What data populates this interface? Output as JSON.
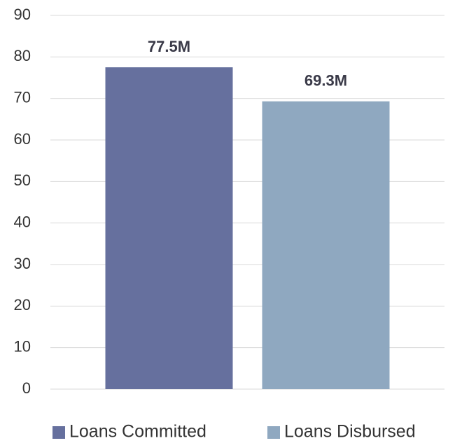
{
  "chart_data": {
    "type": "bar",
    "categories": [
      null
    ],
    "series": [
      {
        "name": "Loans Committed",
        "color": "#66709e",
        "values": [
          77.5
        ],
        "value_labels": [
          "77.5M"
        ]
      },
      {
        "name": "Loans Disbursed",
        "color": "#8fa8c0",
        "values": [
          69.3
        ],
        "value_labels": [
          "69.3M"
        ]
      }
    ],
    "ylim": [
      0,
      90
    ],
    "yticks": [
      0,
      10,
      20,
      30,
      40,
      50,
      60,
      70,
      80,
      90
    ],
    "grid": true,
    "legend": "bottom"
  }
}
